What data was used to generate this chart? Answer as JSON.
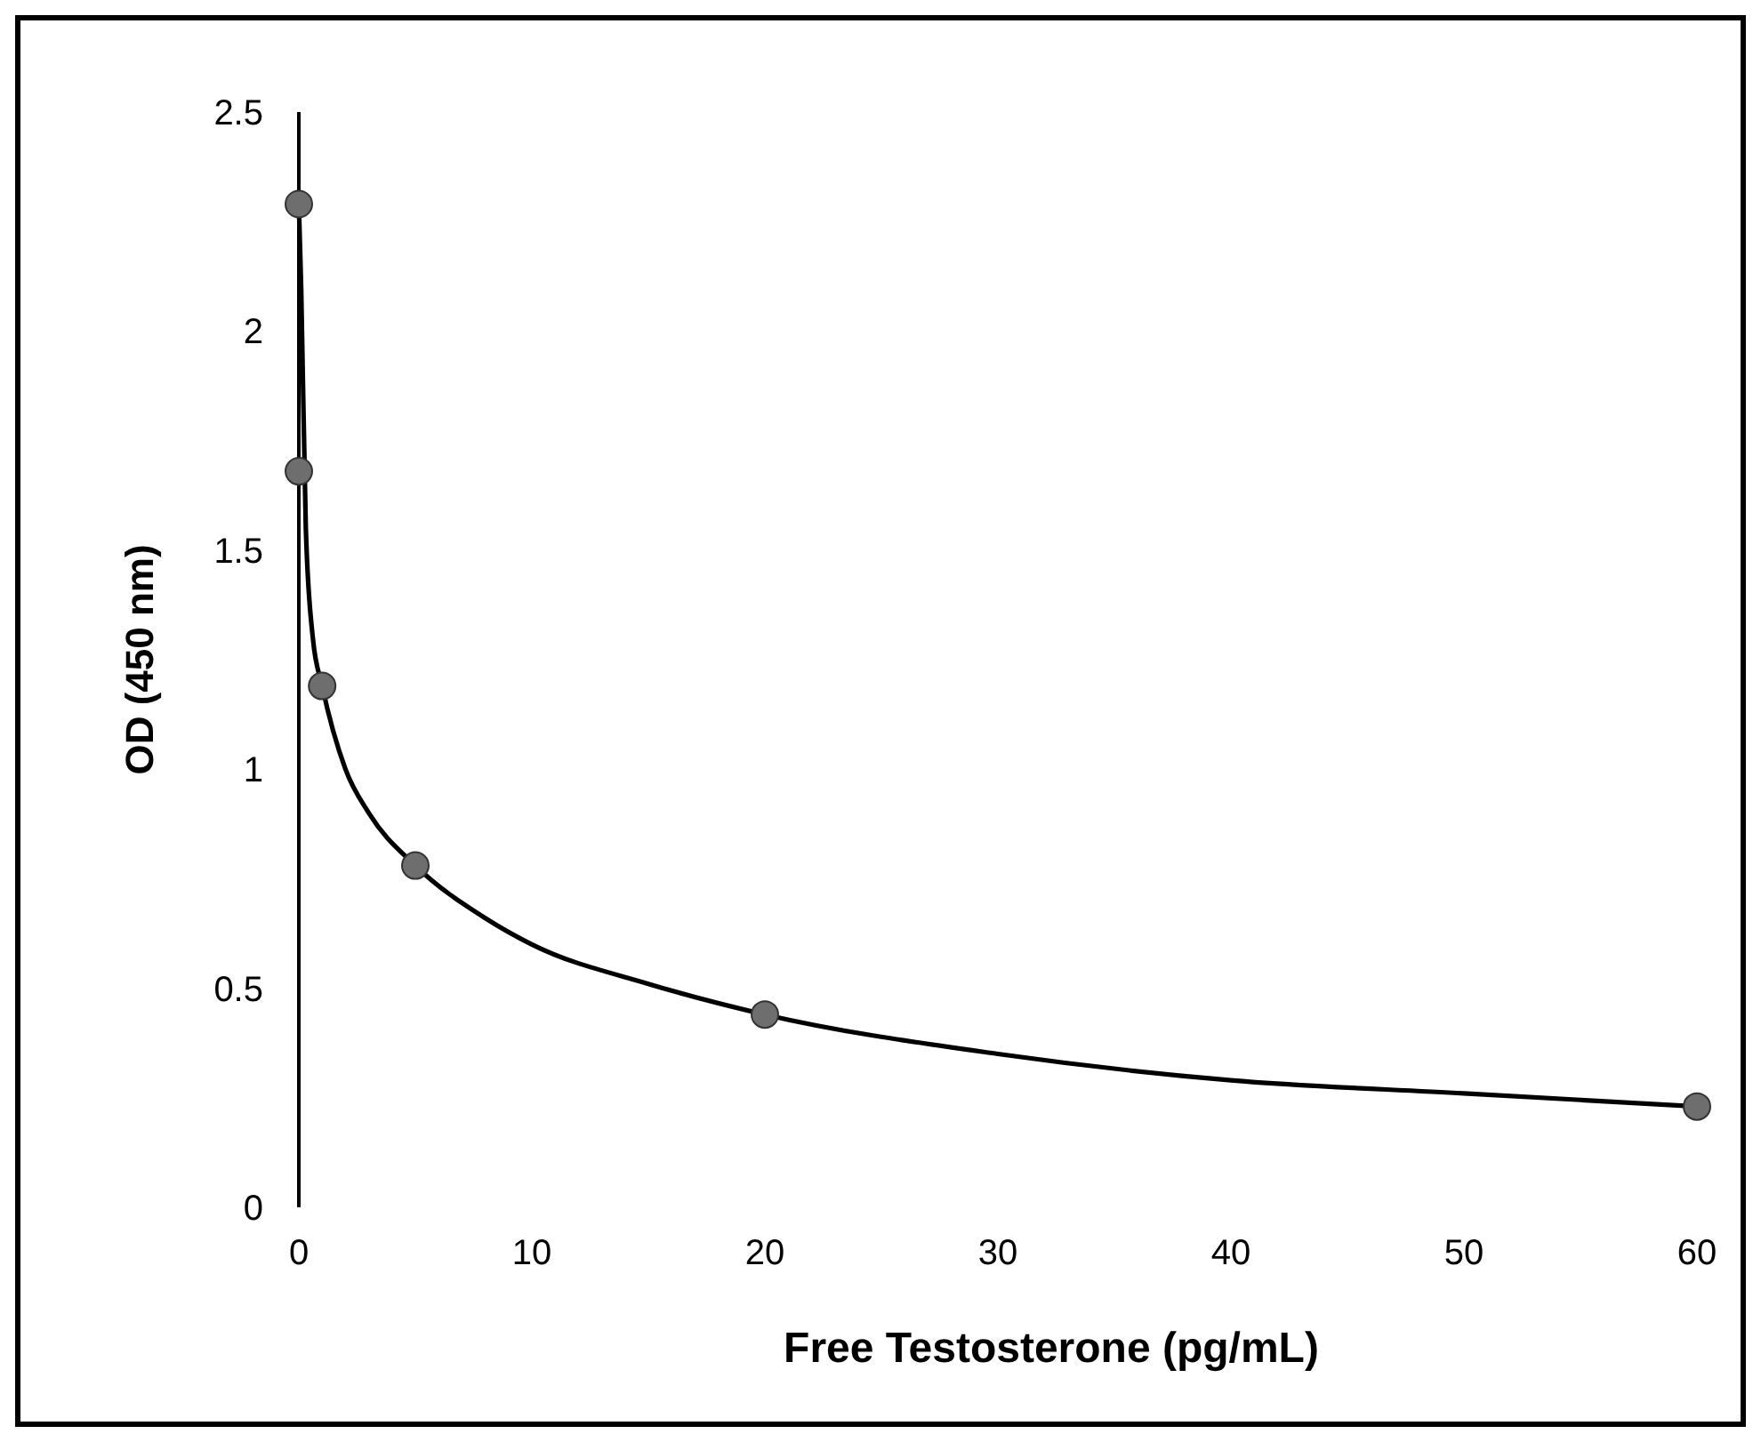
{
  "chart_data": {
    "type": "scatter",
    "xlabel": "Free Testosterone (pg/mL)",
    "ylabel": "OD (450 nm)",
    "xlim": [
      0,
      60
    ],
    "ylim": [
      0,
      2.5
    ],
    "xticks": [
      0,
      10,
      20,
      30,
      40,
      50,
      60
    ],
    "yticks": [
      0,
      0.5,
      1,
      1.5,
      2,
      2.5
    ],
    "grid": false,
    "series": [
      {
        "type": "line",
        "color": "#000000",
        "marker": "none",
        "line_style": "solid",
        "x": [
          0,
          0.1,
          0.3,
          0.6,
          1,
          2,
          3,
          5,
          8,
          10,
          15,
          20,
          30,
          40,
          50,
          60
        ],
        "values": [
          2.29,
          2.1,
          1.55,
          1.3,
          1.19,
          1.0,
          0.9,
          0.78,
          0.66,
          0.6,
          0.51,
          0.44,
          0.35,
          0.29,
          0.26,
          0.23
        ]
      },
      {
        "color": "#6e6e6e",
        "marker": "circle",
        "x": [
          0,
          0,
          1,
          5,
          20,
          60
        ],
        "values": [
          2.29,
          1.68,
          1.19,
          0.78,
          0.44,
          0.23
        ]
      }
    ]
  }
}
